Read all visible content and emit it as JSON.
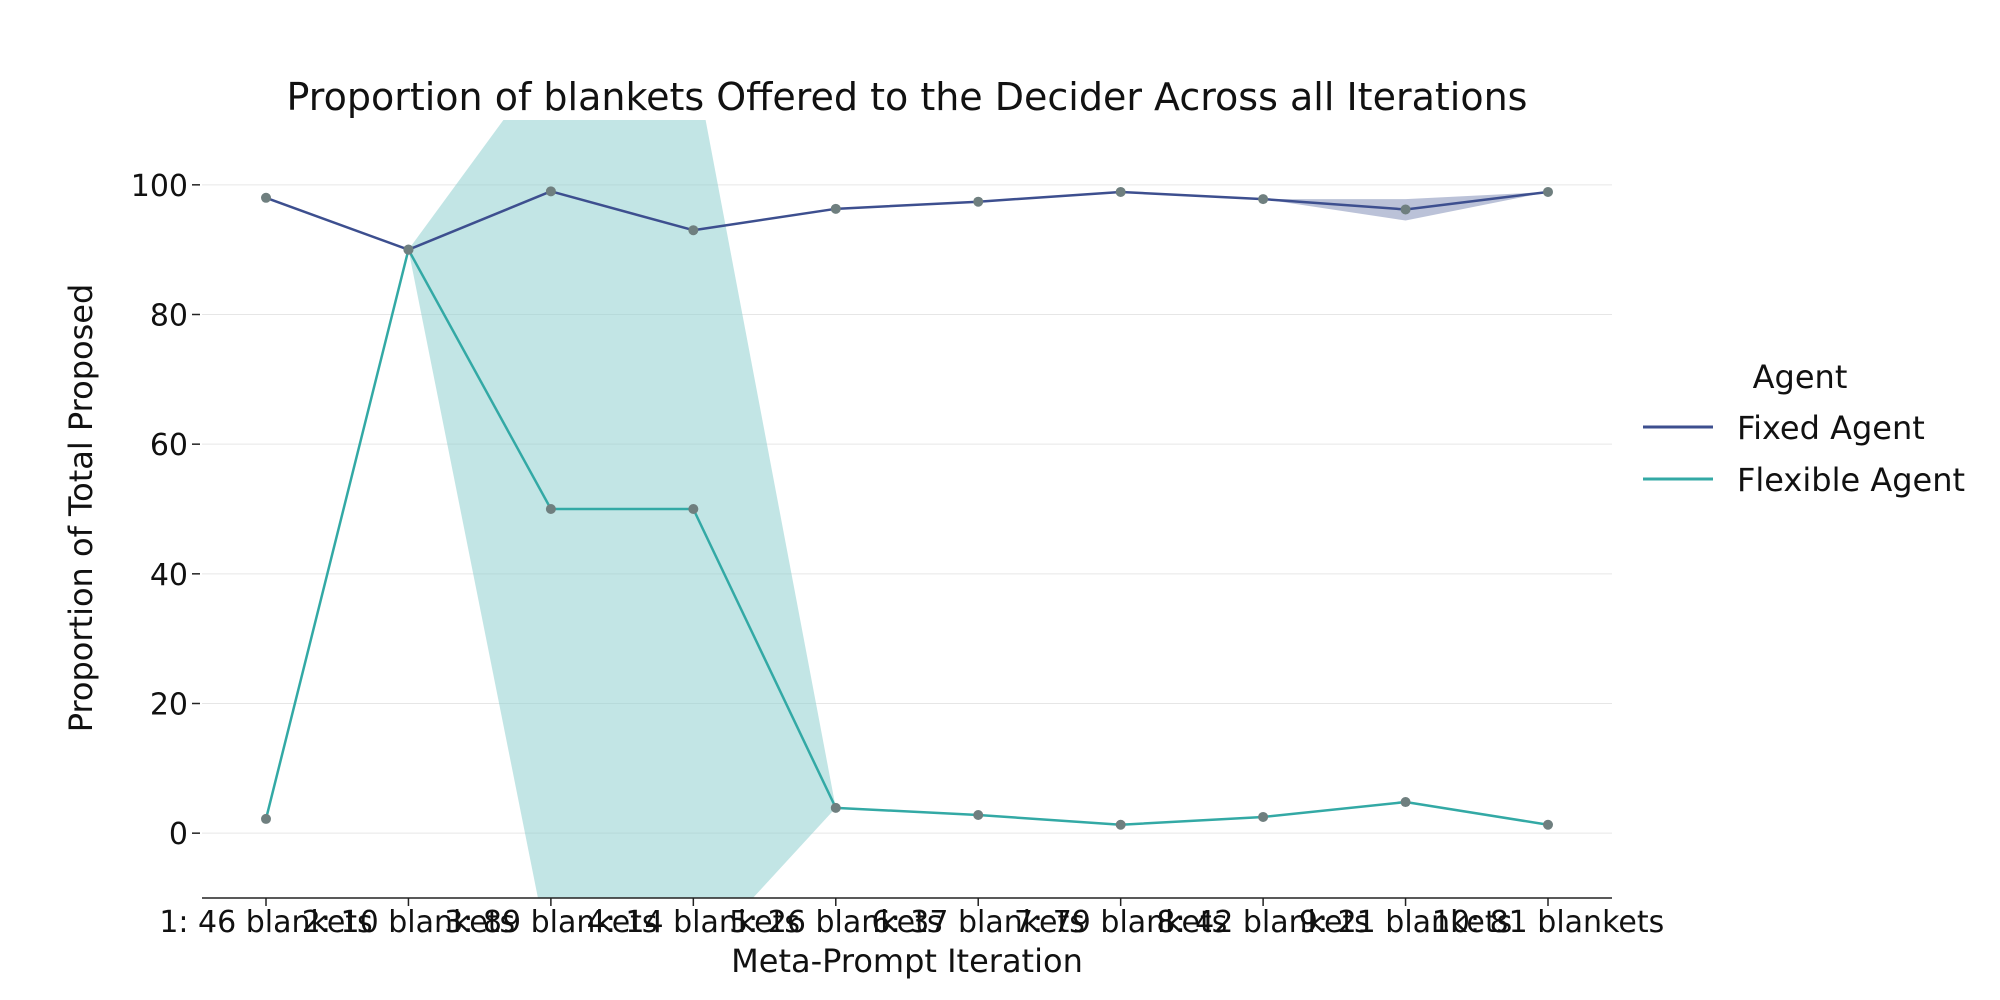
{
  "chart_data": {
    "type": "line",
    "title": "Proportion of blankets Offered to the Decider Across all Iterations",
    "xlabel": "Meta-Prompt Iteration",
    "ylabel": "Proportion of Total Proposed",
    "categories": [
      "1: 46 blankets",
      "2: 10 blankets",
      "3: 89 blankets",
      "4: 14 blankets",
      "5: 26 blankets",
      "6: 37 blankets",
      "7: 79 blankets",
      "8: 42 blankets",
      "9: 21 blankets",
      "10: 81 blankets"
    ],
    "ylim": [
      -10,
      110
    ],
    "yticks": [
      0,
      20,
      40,
      60,
      80,
      100
    ],
    "grid": "horizontal",
    "legend": {
      "title": "Agent",
      "placement": "right"
    },
    "series": [
      {
        "name": "Fixed Agent",
        "color": "#3d4f8f",
        "band_color": "#3d4f8f",
        "values": [
          98.0,
          90.0,
          99.0,
          93.0,
          96.3,
          97.4,
          98.9,
          97.8,
          96.2,
          98.9
        ],
        "ci_low": [
          98.0,
          90.0,
          99.0,
          93.0,
          96.3,
          97.4,
          98.9,
          97.8,
          94.5,
          98.9
        ],
        "ci_high": [
          98.0,
          90.0,
          99.0,
          93.0,
          96.3,
          97.4,
          98.9,
          97.8,
          97.8,
          98.9
        ]
      },
      {
        "name": "Flexible Agent",
        "color": "#33a9a5",
        "band_color": "#8fd0cf",
        "values": [
          2.2,
          90.0,
          50.0,
          50.0,
          3.9,
          2.8,
          1.3,
          2.5,
          4.8,
          1.3
        ],
        "ci_low": [
          2.2,
          90.0,
          -20.0,
          -20.0,
          3.9,
          2.8,
          1.3,
          2.5,
          4.8,
          1.3
        ],
        "ci_high": [
          2.2,
          90.0,
          120.0,
          120.0,
          3.9,
          2.8,
          1.3,
          2.5,
          4.8,
          1.3
        ]
      }
    ]
  }
}
